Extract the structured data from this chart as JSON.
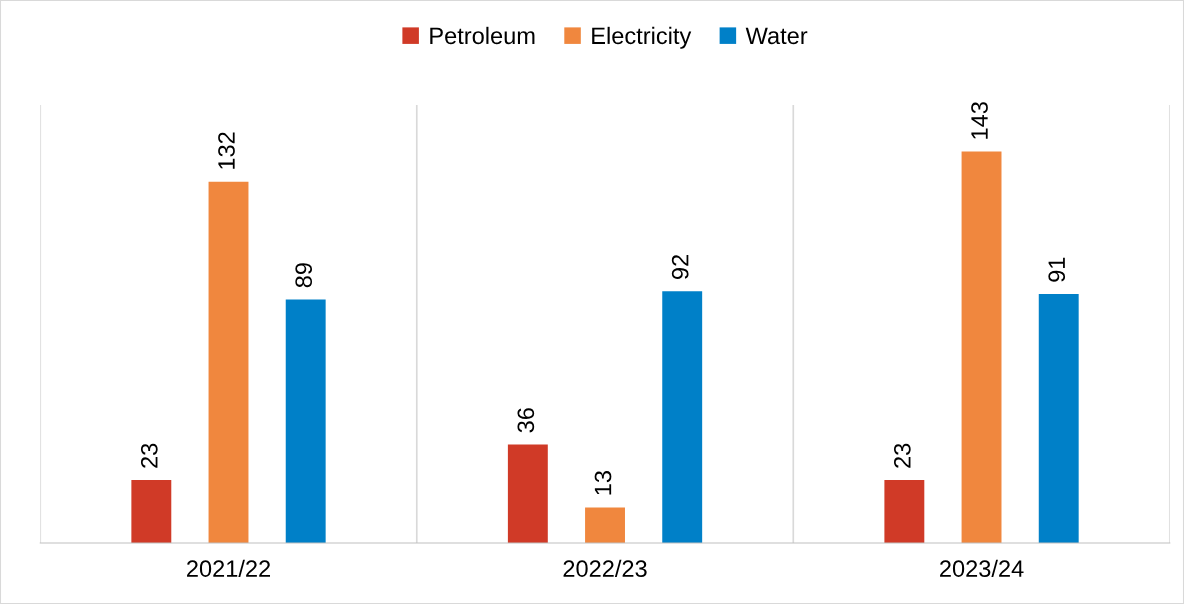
{
  "chart_data": {
    "type": "bar",
    "categories": [
      "2021/22",
      "2022/23",
      "2023/24"
    ],
    "series": [
      {
        "name": "Petroleum",
        "color": "#d03a27",
        "values": [
          23,
          36,
          23
        ]
      },
      {
        "name": "Electricity",
        "color": "#f0873e",
        "values": [
          132,
          13,
          143
        ]
      },
      {
        "name": "Water",
        "color": "#0080c8",
        "values": [
          89,
          92,
          91
        ]
      }
    ],
    "ylim": [
      0,
      160
    ],
    "tick_labels": "x",
    "data_labels": true,
    "grid": "x",
    "legend": "top"
  }
}
